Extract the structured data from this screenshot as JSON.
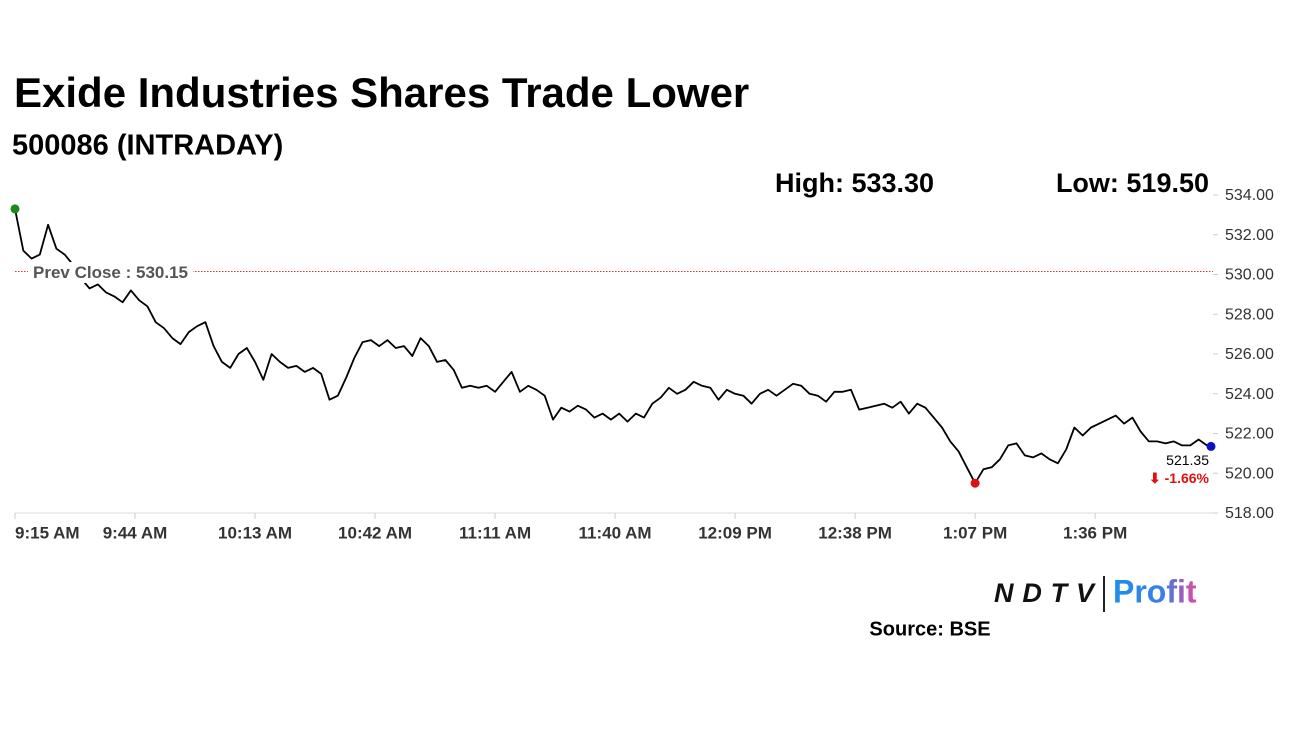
{
  "chart_data": {
    "type": "line",
    "title": "Exide Industries Shares Trade Lower",
    "subtitle": "500086 (INTRADAY)",
    "high_label": "High: 533.30",
    "low_label": "Low: 519.50",
    "prev_close": 530.15,
    "prev_close_label": "Prev Close : 530.15",
    "last_label": "521.35",
    "change_label": "⬇ -1.66%",
    "source": "Source: BSE",
    "logo": {
      "left": "NDTV",
      "right": "Profit"
    },
    "color": "#000000",
    "prev_close_color": "#e03030",
    "high_color": "#1a8a1a",
    "low_color": "#e01010",
    "last_color": "#1010c0",
    "xlim": [
      "9:15 AM",
      "2:04 PM"
    ],
    "xticks": [
      "9:15 AM",
      "9:44 AM",
      "10:13 AM",
      "10:42 AM",
      "11:11 AM",
      "11:40 AM",
      "12:09 PM",
      "12:38 PM",
      "1:07 PM",
      "1:36 PM"
    ],
    "ylim": [
      518,
      534
    ],
    "yticks": [
      {
        "value": 518,
        "label": "518.00"
      },
      {
        "value": 520,
        "label": "520.00"
      },
      {
        "value": 522,
        "label": "522.00"
      },
      {
        "value": 524,
        "label": "524.00"
      },
      {
        "value": 526,
        "label": "526.00"
      },
      {
        "value": 528,
        "label": "528.00"
      },
      {
        "value": 530,
        "label": "530.00"
      },
      {
        "value": 532,
        "label": "532.00"
      },
      {
        "value": 534,
        "label": "534.00"
      }
    ],
    "x": [
      "9:15 AM",
      "9:17 AM",
      "9:19 AM",
      "9:21 AM",
      "9:23 AM",
      "9:25 AM",
      "9:27 AM",
      "9:29 AM",
      "9:31 AM",
      "9:33 AM",
      "9:35 AM",
      "9:37 AM",
      "9:39 AM",
      "9:41 AM",
      "9:43 AM",
      "9:45 AM",
      "9:47 AM",
      "9:49 AM",
      "9:51 AM",
      "9:53 AM",
      "9:55 AM",
      "9:57 AM",
      "9:59 AM",
      "10:01 AM",
      "10:03 AM",
      "10:05 AM",
      "10:07 AM",
      "10:09 AM",
      "10:11 AM",
      "10:13 AM",
      "10:15 AM",
      "10:17 AM",
      "10:19 AM",
      "10:21 AM",
      "10:23 AM",
      "10:25 AM",
      "10:27 AM",
      "10:29 AM",
      "10:31 AM",
      "10:33 AM",
      "10:35 AM",
      "10:37 AM",
      "10:39 AM",
      "10:41 AM",
      "10:43 AM",
      "10:45 AM",
      "10:47 AM",
      "10:49 AM",
      "10:51 AM",
      "10:53 AM",
      "10:55 AM",
      "10:57 AM",
      "10:59 AM",
      "11:01 AM",
      "11:03 AM",
      "11:05 AM",
      "11:07 AM",
      "11:09 AM",
      "11:11 AM",
      "11:13 AM",
      "11:15 AM",
      "11:17 AM",
      "11:19 AM",
      "11:21 AM",
      "11:23 AM",
      "11:25 AM",
      "11:27 AM",
      "11:29 AM",
      "11:31 AM",
      "11:33 AM",
      "11:35 AM",
      "11:37 AM",
      "11:39 AM",
      "11:41 AM",
      "11:43 AM",
      "11:45 AM",
      "11:47 AM",
      "11:49 AM",
      "11:51 AM",
      "11:53 AM",
      "11:55 AM",
      "11:57 AM",
      "11:59 AM",
      "12:01 PM",
      "12:03 PM",
      "12:05 PM",
      "12:07 PM",
      "12:09 PM",
      "12:11 PM",
      "12:13 PM",
      "12:15 PM",
      "12:17 PM",
      "12:19 PM",
      "12:21 PM",
      "12:23 PM",
      "12:25 PM",
      "12:27 PM",
      "12:29 PM",
      "12:31 PM",
      "12:33 PM",
      "12:35 PM",
      "12:37 PM",
      "12:39 PM",
      "12:41 PM",
      "12:43 PM",
      "12:45 PM",
      "12:47 PM",
      "12:49 PM",
      "12:51 PM",
      "12:53 PM",
      "12:55 PM",
      "12:57 PM",
      "12:59 PM",
      "1:01 PM",
      "1:03 PM",
      "1:05 PM",
      "1:07 PM",
      "1:09 PM",
      "1:11 PM",
      "1:13 PM",
      "1:15 PM",
      "1:17 PM",
      "1:19 PM",
      "1:21 PM",
      "1:23 PM",
      "1:25 PM",
      "1:27 PM",
      "1:29 PM",
      "1:31 PM",
      "1:33 PM",
      "1:35 PM",
      "1:37 PM",
      "1:39 PM",
      "1:41 PM",
      "1:43 PM",
      "1:45 PM",
      "1:47 PM",
      "1:49 PM",
      "1:51 PM",
      "1:53 PM",
      "1:55 PM",
      "1:57 PM",
      "1:59 PM",
      "2:01 PM",
      "2:03 PM",
      "2:04 PM"
    ],
    "values": [
      533.3,
      531.2,
      530.8,
      531.0,
      532.5,
      531.3,
      531.0,
      530.5,
      529.8,
      529.3,
      529.5,
      529.1,
      528.9,
      528.6,
      529.2,
      528.7,
      528.4,
      527.6,
      527.3,
      526.8,
      526.5,
      527.1,
      527.4,
      527.6,
      526.4,
      525.6,
      525.3,
      526.0,
      526.3,
      525.6,
      524.7,
      526.0,
      525.6,
      525.3,
      525.4,
      525.1,
      525.3,
      525.0,
      523.7,
      523.9,
      524.8,
      525.8,
      526.6,
      526.7,
      526.4,
      526.7,
      526.3,
      526.4,
      525.9,
      526.8,
      526.4,
      525.6,
      525.7,
      525.2,
      524.3,
      524.4,
      524.3,
      524.4,
      524.1,
      524.6,
      525.1,
      524.1,
      524.4,
      524.2,
      523.9,
      522.7,
      523.3,
      523.1,
      523.4,
      523.2,
      522.8,
      523.0,
      522.7,
      523.0,
      522.6,
      523.0,
      522.8,
      523.5,
      523.8,
      524.3,
      524.0,
      524.2,
      524.6,
      524.4,
      524.3,
      523.7,
      524.2,
      524.0,
      523.9,
      523.5,
      524.0,
      524.2,
      523.9,
      524.2,
      524.5,
      524.4,
      524.0,
      523.9,
      523.6,
      524.1,
      524.1,
      524.2,
      523.2,
      523.3,
      523.4,
      523.5,
      523.3,
      523.6,
      523.0,
      523.5,
      523.3,
      522.8,
      522.3,
      521.6,
      521.1,
      520.3,
      519.5,
      520.2,
      520.3,
      520.7,
      521.4,
      521.5,
      520.9,
      520.8,
      521.0,
      520.7,
      520.5,
      521.2,
      522.3,
      521.9,
      522.3,
      522.5,
      522.7,
      522.9,
      522.5,
      522.8,
      522.1,
      521.6,
      521.6,
      521.5,
      521.6,
      521.4,
      521.4,
      521.7,
      521.4,
      521.35
    ]
  }
}
